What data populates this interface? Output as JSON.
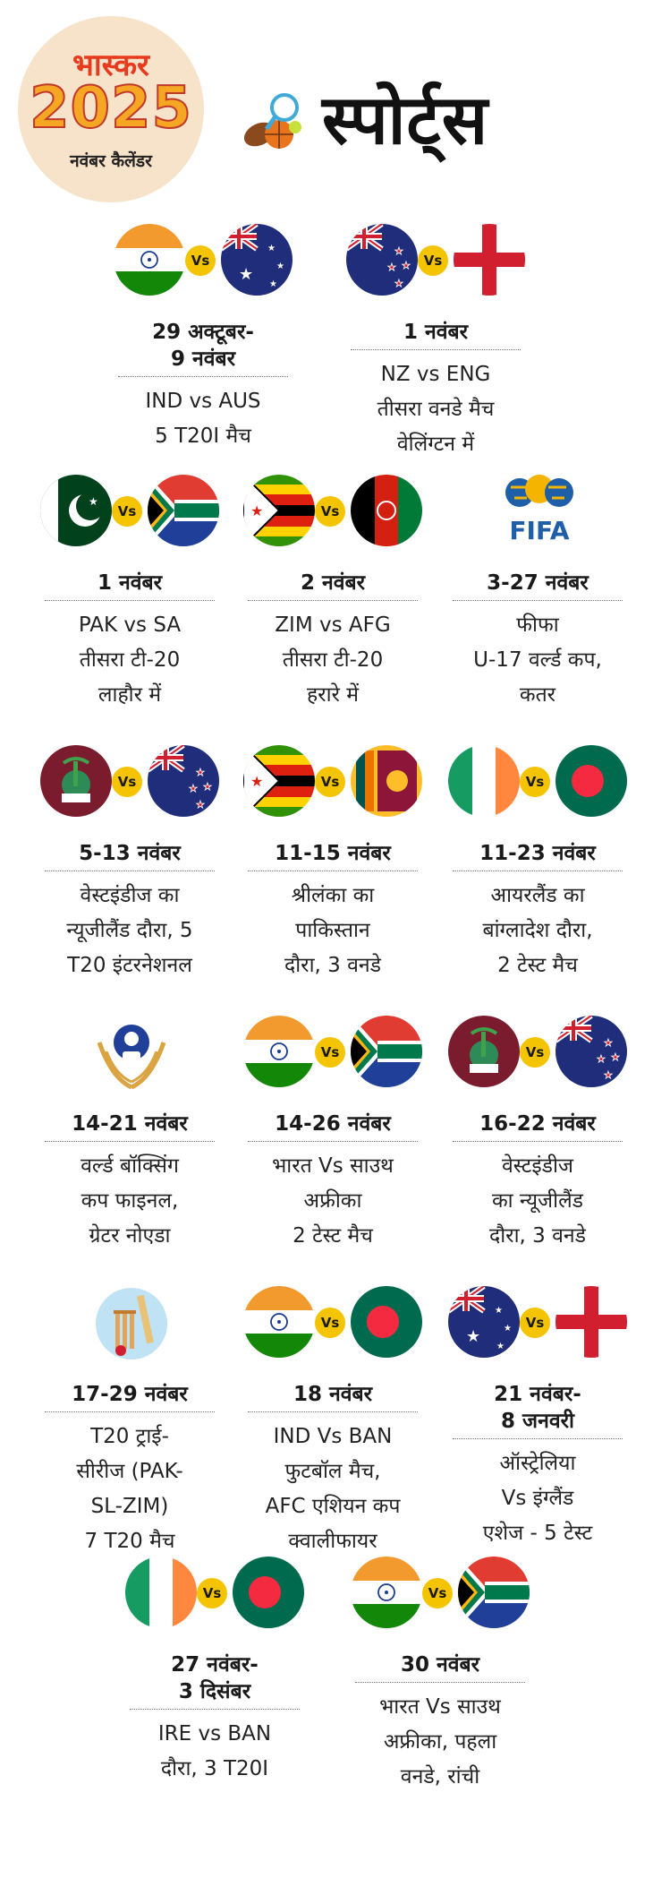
{
  "header": {
    "logo_brand": "भास्कर",
    "logo_year": "2025",
    "logo_sub": "नवंबर कैलेंडर",
    "title": "स्पोर्ट्स"
  },
  "vs_label": "Vs",
  "cards": [
    {
      "left_flag": "india-flag",
      "right_flag": "australia-flag",
      "date": "29 अक्टूबर-\n9 नवंबर",
      "info": [
        "IND vs AUS",
        "5 T20I मैच"
      ]
    },
    {
      "left_flag": "new-zealand-flag",
      "right_flag": "england-flag",
      "date": "1 नवंबर",
      "info": [
        "NZ vs ENG",
        "तीसरा वनडे मैच",
        "वेलिंग्टन में"
      ]
    },
    {
      "left_flag": "pakistan-flag",
      "right_flag": "south-africa-flag",
      "date": "1 नवंबर",
      "info": [
        "PAK vs SA",
        "तीसरा टी-20",
        "लाहौर में"
      ]
    },
    {
      "left_flag": "zimbabwe-flag",
      "right_flag": "afghanistan-flag",
      "date": "2 नवंबर",
      "info": [
        "ZIM vs AFG",
        "तीसरा टी-20",
        "हरारे में"
      ]
    },
    {
      "single_icon": "fifa-logo-icon",
      "logo_text": "FIFA",
      "date": "3-27 नवंबर",
      "info": [
        "फीफा",
        "U-17 वर्ल्ड कप,",
        "कतर"
      ]
    },
    {
      "left_flag": "west-indies-flag",
      "right_flag": "new-zealand-flag",
      "date": "5-13 नवंबर",
      "info": [
        "वेस्टइंडीज का",
        "न्यूजीलैंड दौरा, 5",
        "T20 इंटरनेशनल"
      ]
    },
    {
      "left_flag": "zimbabwe-flag",
      "right_flag": "sri-lanka-flag",
      "date": "11-15 नवंबर",
      "info": [
        "श्रीलंका का",
        "पाकिस्तान",
        "दौरा, 3 वनडे"
      ]
    },
    {
      "left_flag": "ireland-flag",
      "right_flag": "bangladesh-flag",
      "date": "11-23 नवंबर",
      "info": [
        "आयरलैंड का",
        "बांग्लादेश दौरा,",
        "2 टेस्ट मैच"
      ]
    },
    {
      "single_icon": "boxing-logo-icon",
      "date": "14-21 नवंबर",
      "info": [
        "वर्ल्ड बॉक्सिंग",
        "कप फाइनल,",
        "ग्रेटर नोएडा"
      ]
    },
    {
      "left_flag": "india-flag",
      "right_flag": "south-africa-flag",
      "date": "14-26 नवंबर",
      "info": [
        "भारत Vs साउथ",
        "अफ्रीका",
        "2 टेस्ट मैच"
      ]
    },
    {
      "left_flag": "west-indies-flag",
      "right_flag": "new-zealand-flag",
      "date": "16-22 नवंबर",
      "info": [
        "वेस्टइंडीज",
        "का न्यूजीलैंड",
        "दौरा, 3 वनडे"
      ]
    },
    {
      "single_icon": "cricket-icon",
      "date": "17-29 नवंबर",
      "info": [
        "T20 ट्राई-",
        "सीरीज (PAK-",
        "SL-ZIM)",
        "7 T20 मैच"
      ]
    },
    {
      "left_flag": "india-flag",
      "right_flag": "bangladesh-flag",
      "date": "18 नवंबर",
      "info": [
        "IND Vs BAN",
        "फुटबॉल मैच,",
        "AFC एशियन कप",
        "क्वालीफायर"
      ]
    },
    {
      "left_flag": "australia-flag",
      "right_flag": "england-flag",
      "date": "21 नवंबर-\n8 जनवरी",
      "info": [
        "ऑस्ट्रेलिया",
        "Vs इंग्लैंड",
        "एशेज - 5 टेस्ट"
      ]
    },
    {
      "left_flag": "ireland-flag",
      "right_flag": "bangladesh-flag",
      "date": "27 नवंबर-\n3 दिसंबर",
      "info": [
        "IRE vs BAN",
        "दौरा, 3 T20I"
      ]
    },
    {
      "left_flag": "india-flag",
      "right_flag": "south-africa-flag",
      "date": "30 नवंबर",
      "info": [
        "भारत Vs साउथ",
        "अफ्रीका, पहला",
        "वनडे, रांची"
      ]
    }
  ]
}
